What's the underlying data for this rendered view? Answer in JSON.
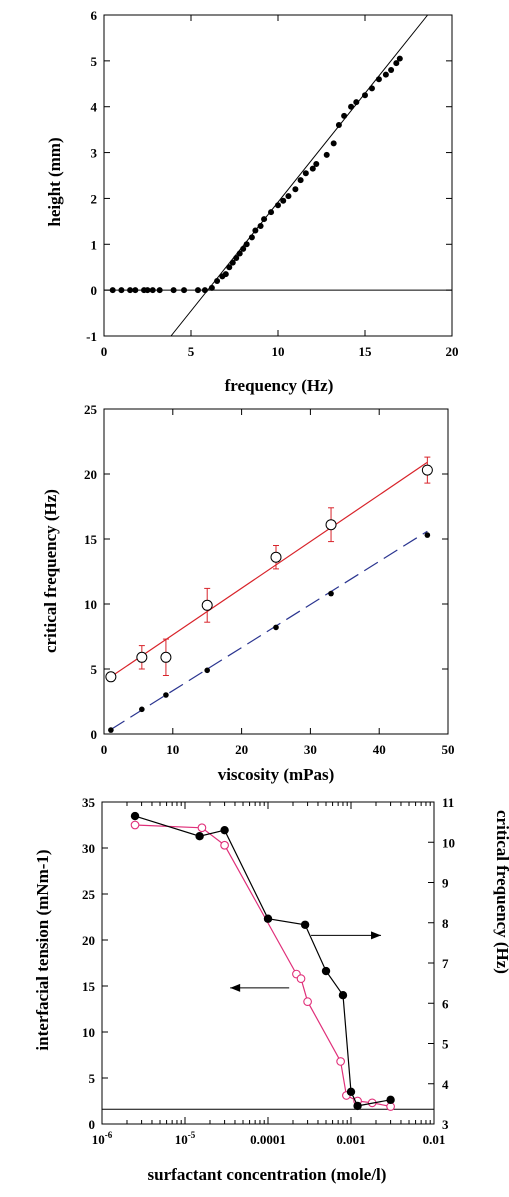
{
  "colors": {
    "axis": "#000000",
    "fit_red": "#d8232a",
    "fit_blue": "#2b3590",
    "tension_pink": "#e0307a",
    "markers": "#000000"
  },
  "chart_data": [
    {
      "type": "scatter",
      "xlabel": "frequency (Hz)",
      "ylabel": "height (mm)",
      "xlim": [
        0,
        20
      ],
      "ylim": [
        -1,
        6
      ],
      "xticks": [
        0,
        5,
        10,
        15,
        20
      ],
      "yticks": [
        -1,
        0,
        1,
        2,
        3,
        4,
        5,
        6
      ],
      "grid": false,
      "series": [
        {
          "style": "filled-circle",
          "x": [
            0.5,
            1.0,
            1.5,
            1.8,
            2.3,
            2.5,
            2.8,
            3.2,
            4.0,
            4.6,
            5.4,
            5.8,
            6.2,
            6.5,
            6.8,
            7.0,
            7.2,
            7.4,
            7.6,
            7.8,
            8.0,
            8.2,
            8.5,
            8.7,
            9.0,
            9.2,
            9.6,
            10.0,
            10.3,
            10.6,
            11.0,
            11.3,
            11.6,
            12.0,
            12.2,
            12.8,
            13.2,
            13.5,
            13.8,
            14.2,
            14.5,
            15.0,
            15.4,
            15.8,
            16.2,
            16.5,
            16.8,
            17.0
          ],
          "y": [
            0,
            0,
            0,
            0,
            0,
            0,
            0,
            0,
            0,
            0,
            0,
            0,
            0.05,
            0.2,
            0.3,
            0.35,
            0.5,
            0.6,
            0.7,
            0.8,
            0.9,
            1.0,
            1.15,
            1.3,
            1.4,
            1.55,
            1.7,
            1.85,
            1.95,
            2.05,
            2.2,
            2.4,
            2.55,
            2.65,
            2.75,
            2.95,
            3.2,
            3.6,
            3.8,
            4.0,
            4.1,
            4.25,
            4.4,
            4.6,
            4.7,
            4.8,
            4.95,
            5.05
          ]
        }
      ],
      "lines": [
        {
          "name": "fit",
          "x1": 3.85,
          "y1": -1,
          "x2": 18.6,
          "y2": 6
        },
        {
          "name": "baseline",
          "x1": 0,
          "y1": 0,
          "x2": 20,
          "y2": 0
        }
      ]
    },
    {
      "type": "scatter",
      "xlabel": "viscosity (mPas)",
      "ylabel": "critical frequency (Hz)",
      "xlim": [
        0,
        50
      ],
      "ylim": [
        0,
        25
      ],
      "xticks": [
        0,
        10,
        20,
        30,
        40,
        50
      ],
      "yticks": [
        0,
        5,
        10,
        15,
        20,
        25
      ],
      "grid": false,
      "series": [
        {
          "style": "open-circle",
          "x": [
            1,
            5.5,
            9,
            15,
            25,
            33,
            47
          ],
          "y": [
            4.4,
            5.9,
            5.9,
            9.9,
            13.6,
            16.1,
            20.3
          ],
          "yerr": [
            0.0,
            0.9,
            1.4,
            1.3,
            0.9,
            1.3,
            1.0
          ]
        },
        {
          "style": "filled-circle-small",
          "x": [
            1,
            5.5,
            9,
            15,
            25,
            33,
            47
          ],
          "y": [
            0.3,
            1.9,
            3.0,
            4.9,
            8.2,
            10.8,
            15.3
          ]
        }
      ],
      "lines": [
        {
          "name": "red-fit",
          "x1": 1,
          "y1": 4.4,
          "x2": 47,
          "y2": 20.9
        },
        {
          "name": "blue-dashed-fit",
          "x1": 1,
          "y1": 0.35,
          "x2": 47,
          "y2": 15.6
        }
      ]
    },
    {
      "type": "line",
      "xscale": "log",
      "xlabel": "surfactant concentration (mole/l)",
      "ylabel": "interfacial tension (mNm-1)",
      "ylabel_right": "critical frequency (Hz)",
      "xlim": [
        1e-06,
        0.01
      ],
      "ylim": [
        0,
        35
      ],
      "ylim_right": [
        3,
        11
      ],
      "xtick_labels": [
        {
          "pre": "10",
          "sup": "-6",
          "v": 1e-06
        },
        {
          "pre": "10",
          "sup": "-5",
          "v": 1e-05
        },
        {
          "pre": "0.0001",
          "sup": "",
          "v": 0.0001
        },
        {
          "pre": "0.001",
          "sup": "",
          "v": 0.001
        },
        {
          "pre": "0.01",
          "sup": "",
          "v": 0.01
        }
      ],
      "yticks": [
        0,
        5,
        10,
        15,
        20,
        25,
        30,
        35
      ],
      "yticks_right": [
        3,
        4,
        5,
        6,
        7,
        8,
        9,
        10,
        11
      ],
      "grid": false,
      "series": [
        {
          "axis": "left",
          "style": "open-circle-pink",
          "x": [
            2.5e-06,
            1.6e-05,
            3e-05,
            0.00022,
            0.00025,
            0.0003,
            0.00075,
            0.00088,
            0.0012,
            0.0018,
            0.003
          ],
          "y": [
            32.5,
            32.2,
            30.3,
            16.3,
            15.8,
            13.3,
            6.8,
            3.1,
            2.5,
            2.3,
            1.9
          ]
        },
        {
          "axis": "right",
          "style": "filled-circle-large",
          "x": [
            2.5e-06,
            1.5e-05,
            3e-05,
            0.0001,
            0.00028,
            0.0005,
            0.0008,
            0.001,
            0.0012,
            0.003
          ],
          "y": [
            10.65,
            10.15,
            10.3,
            8.1,
            7.95,
            6.8,
            6.2,
            3.8,
            3.45,
            3.6
          ]
        }
      ],
      "lines": [
        {
          "name": "horizontal-baseline",
          "axis": "left",
          "y": 1.6
        }
      ],
      "annotations": [
        {
          "name": "arrow-to-right-axis",
          "from_x": 0.00033,
          "to_x": 0.0023,
          "y_left": 20.5
        },
        {
          "name": "arrow-to-left-axis",
          "from_x": 0.00018,
          "to_x": 3.5e-05,
          "y_left": 14.8
        }
      ]
    }
  ]
}
